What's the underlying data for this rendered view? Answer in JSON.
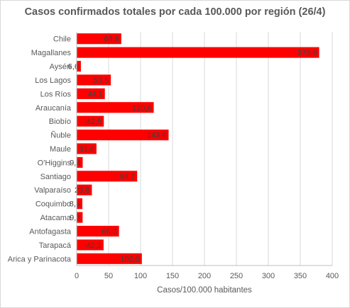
{
  "chart_data": {
    "type": "bar",
    "orientation": "horizontal",
    "title": "Casos confirmados totales por cada 100.000  por región (26/4)",
    "xlabel": "Casos/100.000 habitantes",
    "ylabel": "",
    "xlim": [
      0,
      400
    ],
    "xticks": [
      "0",
      "50",
      "100",
      "150",
      "200",
      "250",
      "300",
      "350",
      "400"
    ],
    "grid": true,
    "legend": "none",
    "bar_color": "#ff0000",
    "categories": [
      "Chile",
      "Magallanes",
      "Aysén",
      "Los Lagos",
      "Los Ríos",
      "Araucanía",
      "Biobío",
      "Ñuble",
      "Maule",
      "O'Higgins",
      "Santiago",
      "Valparaíso",
      "Coquimbo",
      "Atacama",
      "Antofagasta",
      "Tarapacá",
      "Arica y Parinacota"
    ],
    "values": [
      69.8,
      379.6,
      6.6,
      53.5,
      44.1,
      120.6,
      42.5,
      143.9,
      31.0,
      9.4,
      94.7,
      23.8,
      8.9,
      9.3,
      66.3,
      42.1,
      102.0
    ],
    "labels": [
      "69,8",
      "379,6",
      "6,6",
      "53,5",
      "44,1",
      "120,6",
      "42,5",
      "143,9",
      "31,0",
      "9,4",
      "94,7",
      "23,8",
      "8,9",
      "9,3",
      "66,3",
      "42,1",
      "102,0"
    ]
  }
}
